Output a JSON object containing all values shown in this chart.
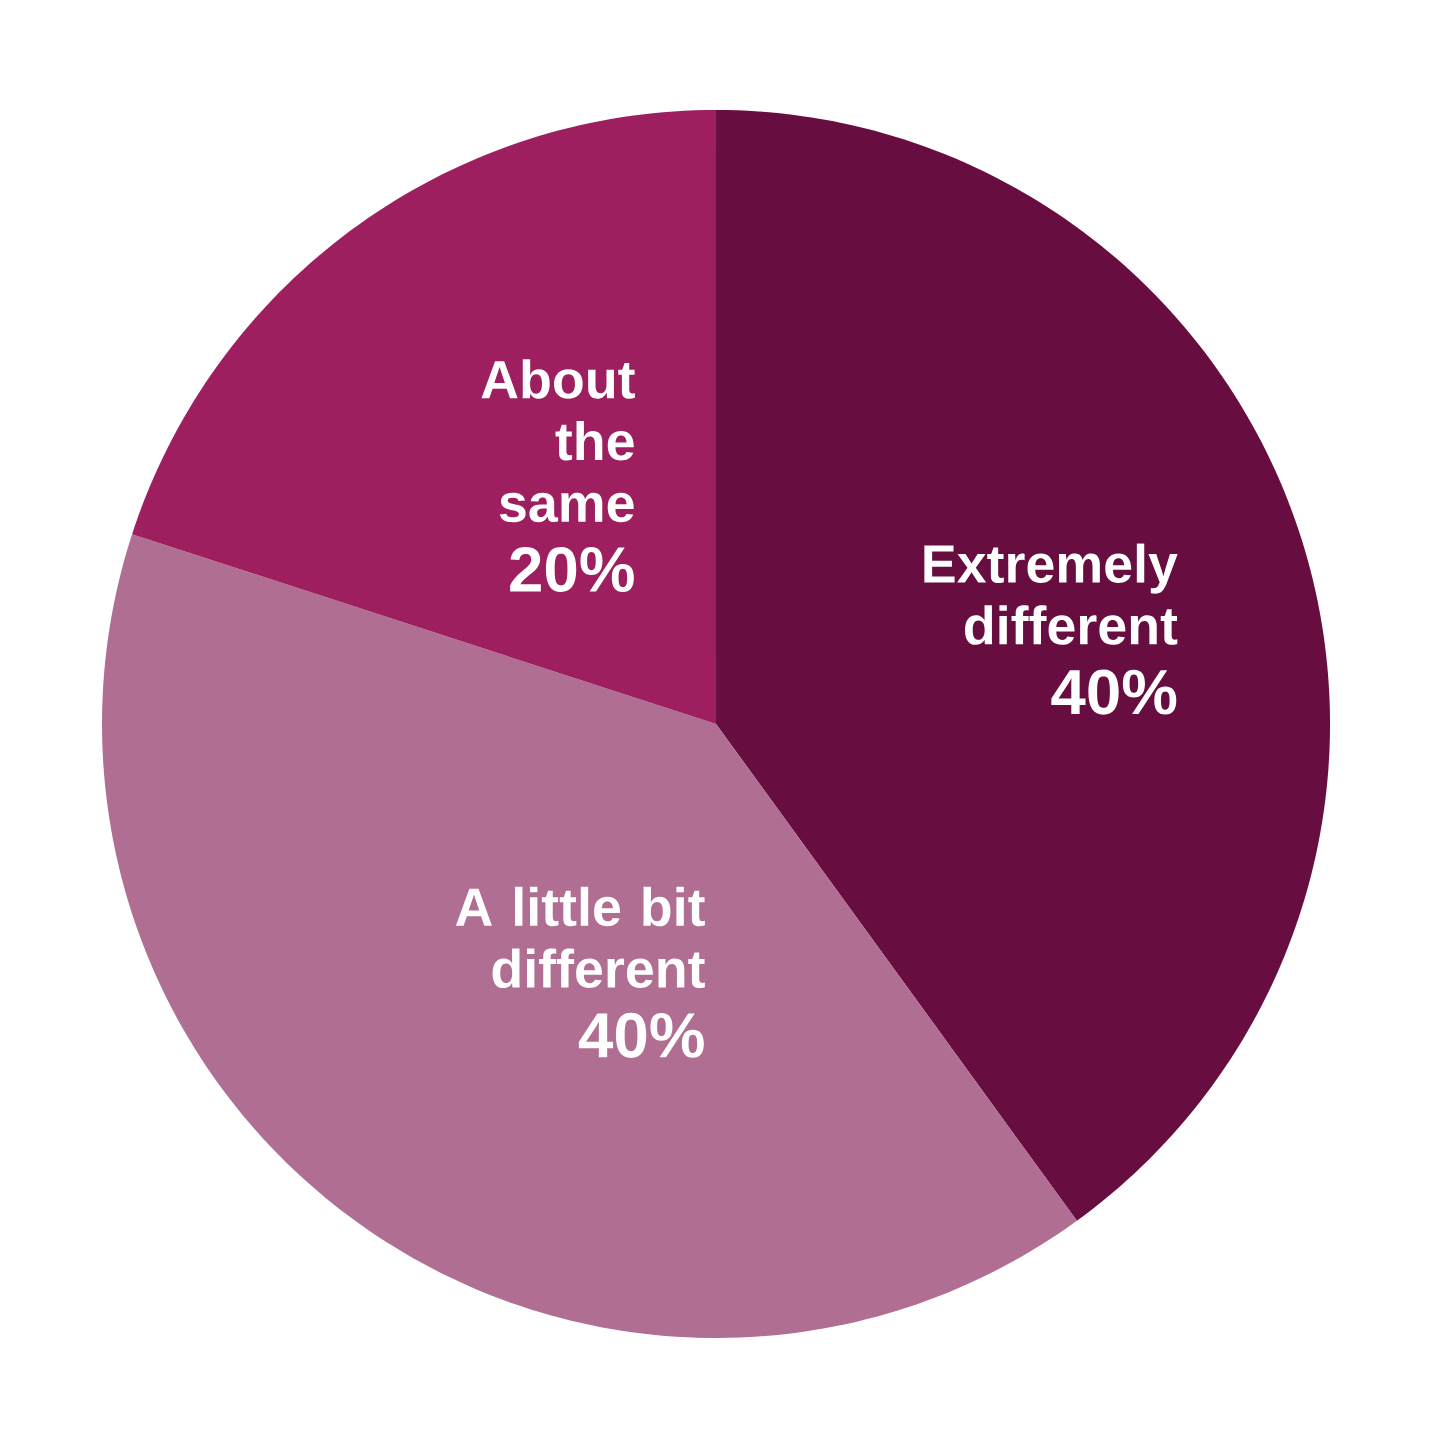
{
  "chart_data": {
    "type": "pie",
    "categories": [
      "Extremely different",
      "A little bit different",
      "About the same"
    ],
    "values": [
      40,
      40,
      20
    ],
    "colors": [
      "#680d40",
      "#b06e92",
      "#9e1f5f"
    ],
    "value_labels": [
      "40%",
      "40%",
      "20%"
    ]
  }
}
